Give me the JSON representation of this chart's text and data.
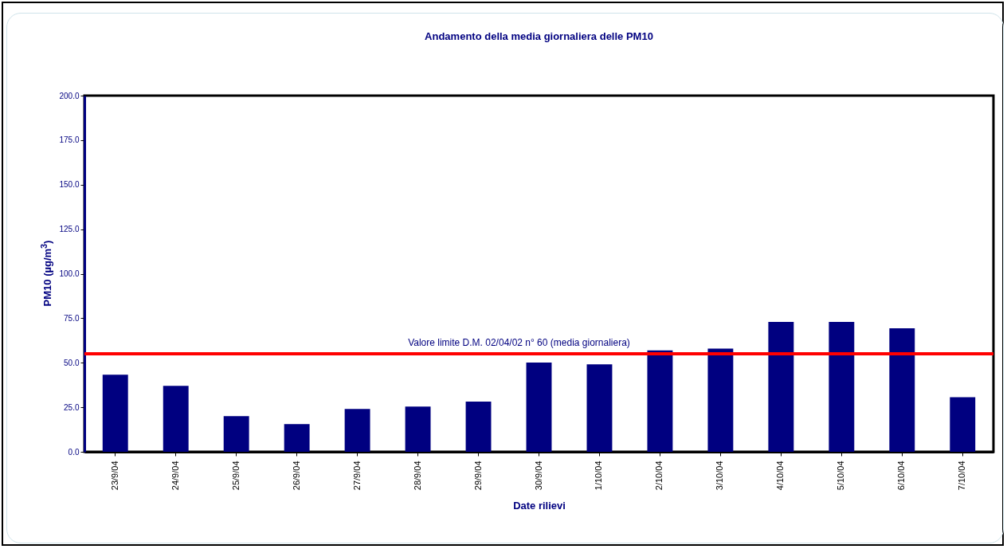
{
  "chart_data": {
    "type": "bar",
    "title": "Andamento della media giornaliera delle PM10",
    "xlabel": "Date rilievi",
    "ylabel": "PM10 (µg/m$^{3}$)",
    "categories": [
      "23/9/04",
      "24/9/04",
      "25/9/04",
      "26/9/04",
      "27/9/04",
      "28/9/04",
      "29/9/04",
      "30/9/04",
      "1/10/04",
      "2/10/04",
      "3/10/04",
      "4/10/04",
      "5/10/04",
      "6/10/04",
      "7/10/04"
    ],
    "series": [
      {
        "color": "#000080",
        "values": [
          43.3,
          37.0,
          20.0,
          15.5,
          24.0,
          25.4,
          28.2,
          50.1,
          49.1,
          56.9,
          57.9,
          72.9,
          72.9,
          69.4,
          30.7
        ]
      }
    ],
    "ylim": [
      0,
      200
    ],
    "yticks": [
      {
        "value": 0,
        "label": "0.0"
      },
      {
        "value": 25,
        "label": "25.0"
      },
      {
        "value": 50,
        "label": "50.0"
      },
      {
        "value": 75,
        "label": "75.0"
      },
      {
        "value": 100,
        "label": "100.0"
      },
      {
        "value": 125,
        "label": "125.0"
      },
      {
        "value": 150,
        "label": "150.0"
      },
      {
        "value": 175,
        "label": "175.0"
      },
      {
        "value": 200,
        "label": "200.0"
      }
    ],
    "ref_lines": [
      {
        "axis": "y",
        "value": 55,
        "label": "Valore limite D.M. 02/04/02  n° 60 (media giornaliera)",
        "color": "#ff0000"
      }
    ],
    "grid": false,
    "legend": false
  }
}
